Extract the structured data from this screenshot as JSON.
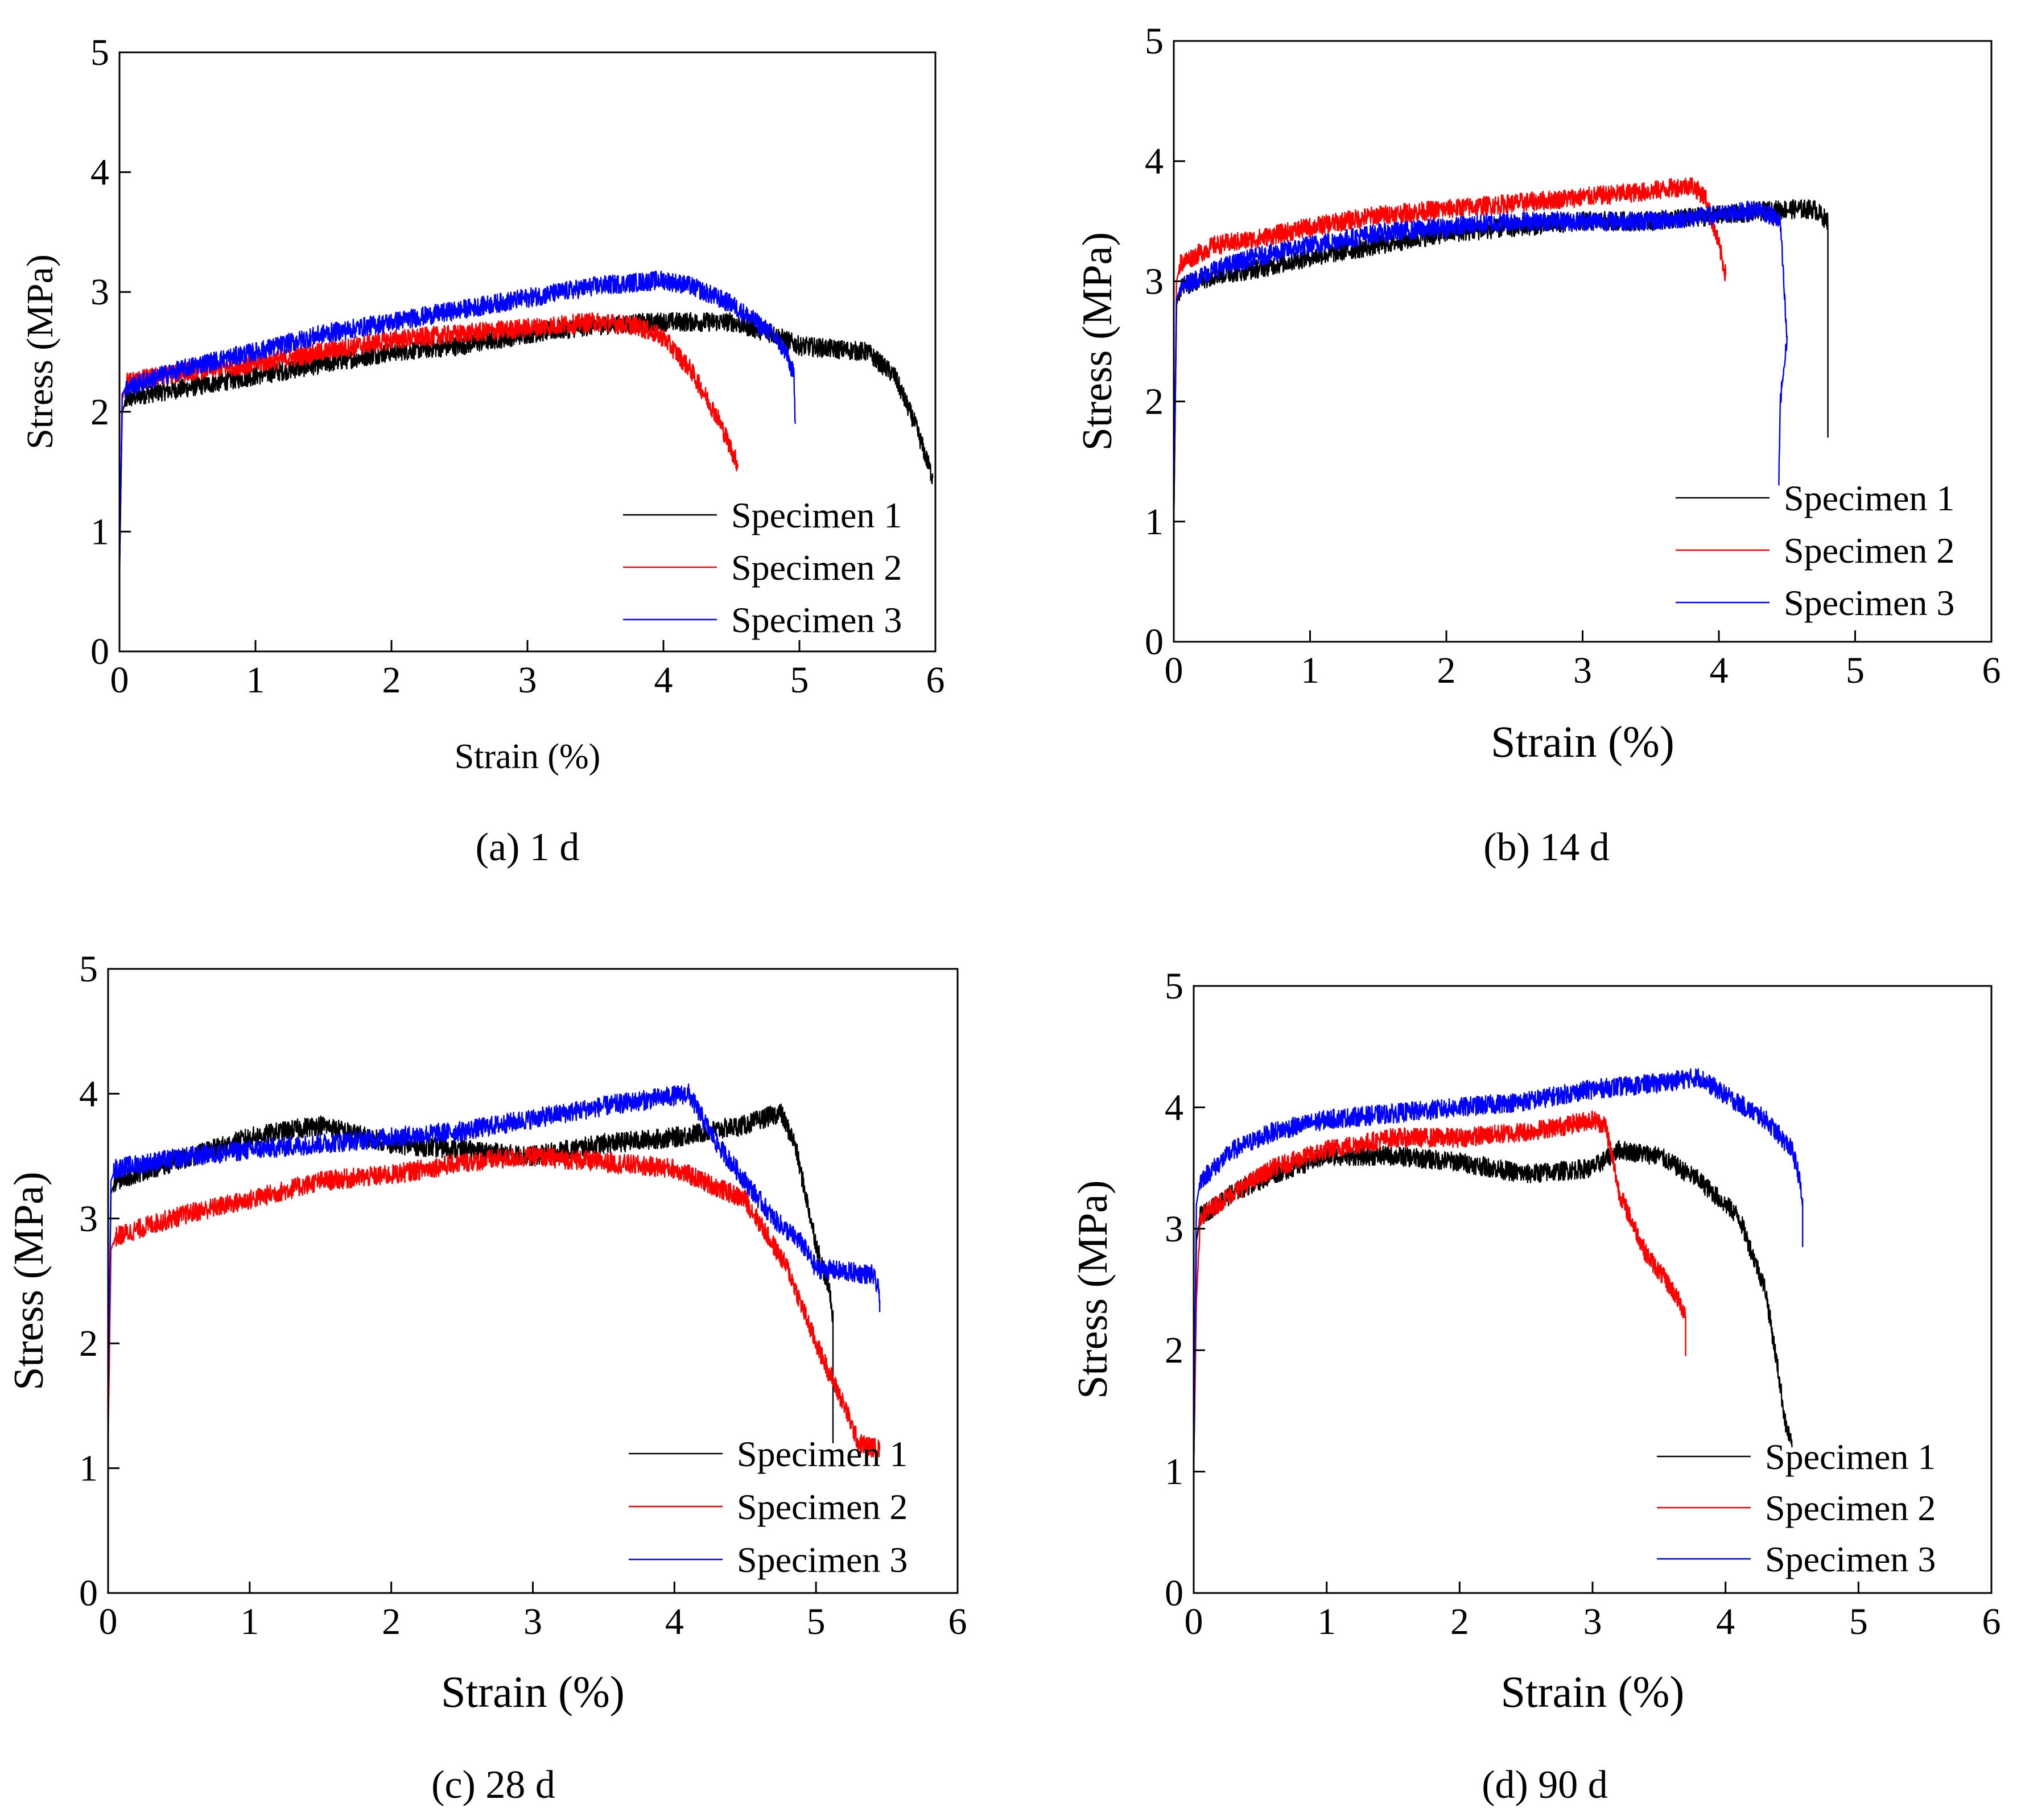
{
  "figure": {
    "panels_count": 4
  },
  "chart_data": [
    {
      "type": "line",
      "caption": "(a) 1 d",
      "xlabel": "Strain (%)",
      "ylabel": "Stress (MPa)",
      "xlim": [
        0,
        6
      ],
      "ylim": [
        0,
        5
      ],
      "xticks": [
        "0",
        "1",
        "2",
        "3",
        "4",
        "5",
        "6"
      ],
      "yticks": [
        "0",
        "1",
        "2",
        "3",
        "4",
        "5"
      ],
      "grid": false,
      "legend_position": "bottom-right",
      "series": [
        {
          "name": "Specimen 1",
          "color": "#000000",
          "x": [
            0,
            0.02,
            0.05,
            0.2,
            0.5,
            1.0,
            1.5,
            2.0,
            2.5,
            3.0,
            3.5,
            4.0,
            4.5,
            4.8,
            5.0,
            5.5,
            5.7,
            5.85,
            5.98
          ],
          "y": [
            0.7,
            2.0,
            2.1,
            2.15,
            2.2,
            2.3,
            2.4,
            2.5,
            2.55,
            2.65,
            2.72,
            2.75,
            2.75,
            2.65,
            2.55,
            2.5,
            2.3,
            1.9,
            1.45
          ]
        },
        {
          "name": "Specimen 2",
          "color": "#ff0000",
          "x": [
            0,
            0.02,
            0.05,
            0.3,
            0.6,
            1.0,
            1.5,
            2.0,
            2.5,
            3.0,
            3.5,
            3.8,
            4.0,
            4.2,
            4.4,
            4.55
          ],
          "y": [
            0.7,
            2.1,
            2.25,
            2.3,
            2.35,
            2.4,
            2.5,
            2.6,
            2.65,
            2.7,
            2.75,
            2.72,
            2.62,
            2.35,
            1.95,
            1.55
          ]
        },
        {
          "name": "Specimen 3",
          "color": "#0000ff",
          "x": [
            0,
            0.02,
            0.05,
            0.3,
            0.6,
            1.0,
            1.5,
            2.0,
            2.5,
            3.0,
            3.5,
            4.0,
            4.2,
            4.5,
            4.8,
            4.9,
            4.96,
            4.97
          ],
          "y": [
            0.6,
            2.15,
            2.2,
            2.3,
            2.4,
            2.5,
            2.65,
            2.75,
            2.85,
            2.95,
            3.05,
            3.1,
            3.05,
            2.9,
            2.65,
            2.5,
            2.3,
            1.9
          ]
        }
      ]
    },
    {
      "type": "line",
      "caption": "(b) 14 d",
      "xlabel": "Strain  (%)",
      "ylabel": "Stress (MPa)",
      "xlim": [
        0,
        6
      ],
      "ylim": [
        0,
        5
      ],
      "xticks": [
        "0",
        "1",
        "2",
        "3",
        "4",
        "5",
        "6"
      ],
      "yticks": [
        "0",
        "1",
        "2",
        "3",
        "4",
        "5"
      ],
      "grid": false,
      "legend_position": "bottom-right",
      "series": [
        {
          "name": "Specimen 1",
          "color": "#000000",
          "x": [
            0,
            0.02,
            0.05,
            0.3,
            0.6,
            1.0,
            1.5,
            2.0,
            2.5,
            3.0,
            3.5,
            4.0,
            4.5,
            4.7,
            4.8,
            4.8
          ],
          "y": [
            1.0,
            2.8,
            2.95,
            3.05,
            3.1,
            3.2,
            3.3,
            3.4,
            3.45,
            3.5,
            3.5,
            3.55,
            3.6,
            3.6,
            3.5,
            1.7
          ]
        },
        {
          "name": "Specimen 2",
          "color": "#ff0000",
          "x": [
            0,
            0.02,
            0.05,
            0.3,
            0.6,
            1.0,
            1.5,
            2.0,
            2.5,
            3.0,
            3.5,
            3.8,
            3.9,
            4.0,
            4.05
          ],
          "y": [
            1.0,
            3.0,
            3.15,
            3.3,
            3.35,
            3.45,
            3.55,
            3.6,
            3.65,
            3.7,
            3.75,
            3.8,
            3.7,
            3.3,
            3.05
          ]
        },
        {
          "name": "Specimen 3",
          "color": "#0000ff",
          "x": [
            0,
            0.02,
            0.05,
            0.3,
            0.6,
            1.0,
            1.5,
            2.0,
            2.5,
            3.0,
            3.5,
            4.0,
            4.3,
            4.45,
            4.5,
            4.45,
            4.44
          ],
          "y": [
            1.0,
            2.85,
            2.95,
            3.1,
            3.2,
            3.3,
            3.4,
            3.45,
            3.5,
            3.5,
            3.5,
            3.55,
            3.6,
            3.5,
            2.5,
            2.0,
            1.3
          ]
        }
      ]
    },
    {
      "type": "line",
      "caption": "(c) 28 d",
      "xlabel": "Strain (%)",
      "ylabel": "Stress (MPa)",
      "xlim": [
        0,
        6
      ],
      "ylim": [
        0,
        5
      ],
      "xticks": [
        "0",
        "1",
        "2",
        "3",
        "4",
        "5",
        "6"
      ],
      "yticks": [
        "0",
        "1",
        "2",
        "3",
        "4",
        "5"
      ],
      "grid": false,
      "legend_position": "bottom-right",
      "series": [
        {
          "name": "Specimen 1",
          "color": "#000000",
          "x": [
            0,
            0.02,
            0.05,
            0.3,
            0.6,
            1.0,
            1.5,
            2.0,
            2.5,
            3.0,
            3.5,
            4.0,
            4.5,
            4.75,
            4.85,
            5.0,
            5.1,
            5.12,
            5.12
          ],
          "y": [
            1.5,
            3.2,
            3.3,
            3.4,
            3.5,
            3.65,
            3.75,
            3.6,
            3.55,
            3.5,
            3.6,
            3.65,
            3.75,
            3.85,
            3.6,
            2.8,
            2.4,
            2.2,
            1.2
          ]
        },
        {
          "name": "Specimen 2",
          "color": "#ff0000",
          "x": [
            0,
            0.02,
            0.05,
            0.3,
            0.6,
            1.0,
            1.5,
            2.0,
            2.5,
            3.0,
            3.5,
            4.0,
            4.5,
            4.8,
            5.0,
            5.2,
            5.3,
            5.45
          ],
          "y": [
            1.2,
            2.75,
            2.85,
            2.95,
            3.05,
            3.15,
            3.3,
            3.35,
            3.45,
            3.5,
            3.45,
            3.4,
            3.15,
            2.6,
            2.0,
            1.5,
            1.2,
            1.15
          ]
        },
        {
          "name": "Specimen 3",
          "color": "#0000ff",
          "x": [
            0,
            0.02,
            0.05,
            0.3,
            0.6,
            1.0,
            1.5,
            2.0,
            2.5,
            3.0,
            3.5,
            3.8,
            4.1,
            4.3,
            4.5,
            4.7,
            4.9,
            5.0,
            5.4,
            5.45,
            5.45
          ],
          "y": [
            1.5,
            3.3,
            3.4,
            3.45,
            3.5,
            3.55,
            3.6,
            3.65,
            3.7,
            3.8,
            3.9,
            3.95,
            4.0,
            3.6,
            3.3,
            3.0,
            2.8,
            2.6,
            2.55,
            2.4,
            2.25
          ]
        }
      ]
    },
    {
      "type": "line",
      "caption": "(d) 90 d",
      "xlabel": "Strain  (%)",
      "ylabel": "Stress (MPa)",
      "xlim": [
        0,
        6
      ],
      "ylim": [
        0,
        5
      ],
      "xticks": [
        "0",
        "1",
        "2",
        "3",
        "4",
        "5",
        "6"
      ],
      "yticks": [
        "0",
        "1",
        "2",
        "3",
        "4",
        "5"
      ],
      "grid": false,
      "legend_position": "bottom-right",
      "series": [
        {
          "name": "Specimen 1",
          "color": "#000000",
          "x": [
            0,
            0.02,
            0.05,
            0.3,
            0.6,
            1.0,
            1.5,
            2.0,
            2.5,
            3.0,
            3.2,
            3.5,
            3.8,
            4.1,
            4.3,
            4.4,
            4.45,
            4.5
          ],
          "y": [
            1.0,
            2.9,
            3.1,
            3.3,
            3.45,
            3.6,
            3.6,
            3.55,
            3.45,
            3.5,
            3.65,
            3.6,
            3.4,
            3.1,
            2.5,
            1.8,
            1.4,
            1.2
          ]
        },
        {
          "name": "Specimen 2",
          "color": "#ff0000",
          "x": [
            0,
            0.02,
            0.05,
            0.3,
            0.6,
            1.0,
            1.5,
            2.0,
            2.5,
            2.8,
            3.0,
            3.1,
            3.2,
            3.4,
            3.6,
            3.7,
            3.7
          ],
          "y": [
            1.0,
            2.4,
            3.1,
            3.3,
            3.5,
            3.65,
            3.75,
            3.75,
            3.8,
            3.85,
            3.9,
            3.85,
            3.3,
            2.8,
            2.5,
            2.3,
            1.95
          ]
        },
        {
          "name": "Specimen 3",
          "color": "#0000ff",
          "x": [
            0,
            0.02,
            0.05,
            0.3,
            0.6,
            1.0,
            1.5,
            2.0,
            2.5,
            3.0,
            3.5,
            3.8,
            4.0,
            4.3,
            4.5,
            4.55,
            4.58,
            4.58
          ],
          "y": [
            1.0,
            3.2,
            3.4,
            3.65,
            3.8,
            3.9,
            3.95,
            4.0,
            4.05,
            4.15,
            4.2,
            4.25,
            4.1,
            3.9,
            3.65,
            3.45,
            3.2,
            2.85
          ]
        }
      ]
    }
  ]
}
